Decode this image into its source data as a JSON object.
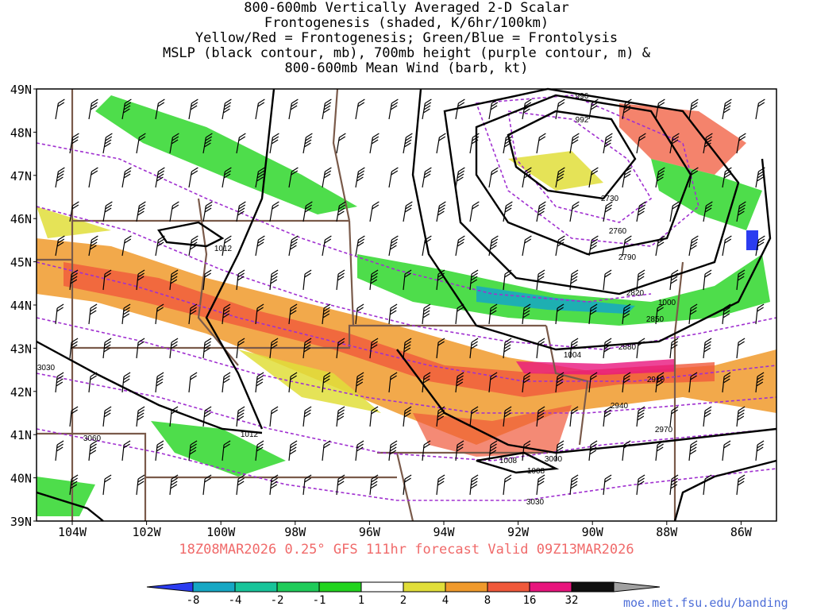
{
  "title_lines": [
    "800-600mb Vertically Averaged 2-D Scalar",
    "Frontogenesis (shaded, K/6hr/100km)",
    "Yellow/Red = Frontogenesis;  Green/Blue = Frontolysis",
    "MSLP (black contour, mb), 700mb height (purple contour, m) &",
    "800-600mb Mean Wind (barb, kt)"
  ],
  "footer": "18Z08MAR2026 0.25° GFS 111hr forecast Valid 09Z13MAR2026",
  "credit": "moe.met.fsu.edu/banding",
  "lat_labels": [
    "49N",
    "48N",
    "47N",
    "46N",
    "45N",
    "44N",
    "43N",
    "42N",
    "41N",
    "40N",
    "39N"
  ],
  "lon_labels": [
    "104W",
    "102W",
    "100W",
    "98W",
    "96W",
    "94W",
    "92W",
    "90W",
    "88W",
    "86W"
  ],
  "colorbar": {
    "labels": [
      "-8",
      "-4",
      "-2",
      "-1",
      "1",
      "2",
      "4",
      "8",
      "16",
      "32"
    ],
    "colors": [
      "#2b3cf0",
      "#16a7c4",
      "#18c49a",
      "#1fcc5a",
      "#22d41e",
      "#ffffff",
      "#e1de3a",
      "#f09a2c",
      "#f0593b",
      "#e8157d",
      "#101010",
      "#a0a0a0"
    ]
  },
  "colors": {
    "height_contour": "#a030d0",
    "mslp_contour": "#000000",
    "state_border": "#7a5a4a"
  },
  "mslp_labels": [
    "996",
    "992",
    "1012",
    "1000",
    "1004",
    "1008",
    "1008",
    "1012"
  ],
  "height_labels": [
    "2730",
    "2760",
    "2790",
    "2820",
    "2850",
    "2880",
    "2910",
    "2940",
    "2970",
    "3000",
    "3030",
    "3030",
    "3060"
  ]
}
